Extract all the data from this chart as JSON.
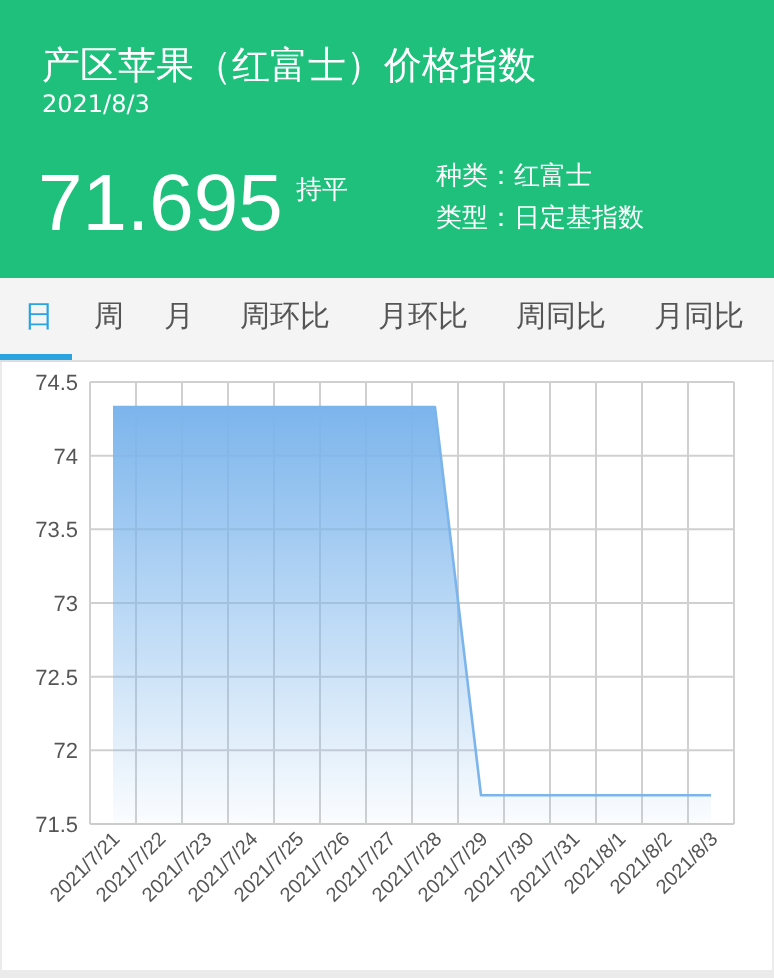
{
  "chart_data": {
    "type": "area",
    "title": "产区苹果（红富士）价格指数",
    "subtitle": "2021/8/3",
    "annotations": [
      "71.695",
      "持平",
      "种类：红富士",
      "类型：日定基指数",
      "日",
      "周",
      "月",
      "周环比",
      "月环比",
      "周同比",
      "月同比"
    ],
    "categories": [
      "2021/7/21",
      "2021/7/22",
      "2021/7/23",
      "2021/7/24",
      "2021/7/25",
      "2021/7/26",
      "2021/7/27",
      "2021/7/28",
      "2021/7/29",
      "2021/7/30",
      "2021/7/31",
      "2021/8/1",
      "2021/8/2",
      "2021/8/3"
    ],
    "values": [
      74.33,
      74.33,
      74.33,
      74.33,
      74.33,
      74.33,
      74.33,
      74.33,
      71.695,
      71.695,
      71.695,
      71.695,
      71.695,
      71.695
    ],
    "color": "#7cb5ec",
    "ylim": [
      71.5,
      74.5
    ],
    "yticks": [
      71.5,
      72,
      72.5,
      73,
      73.5,
      74,
      74.5
    ],
    "grid": true
  }
}
